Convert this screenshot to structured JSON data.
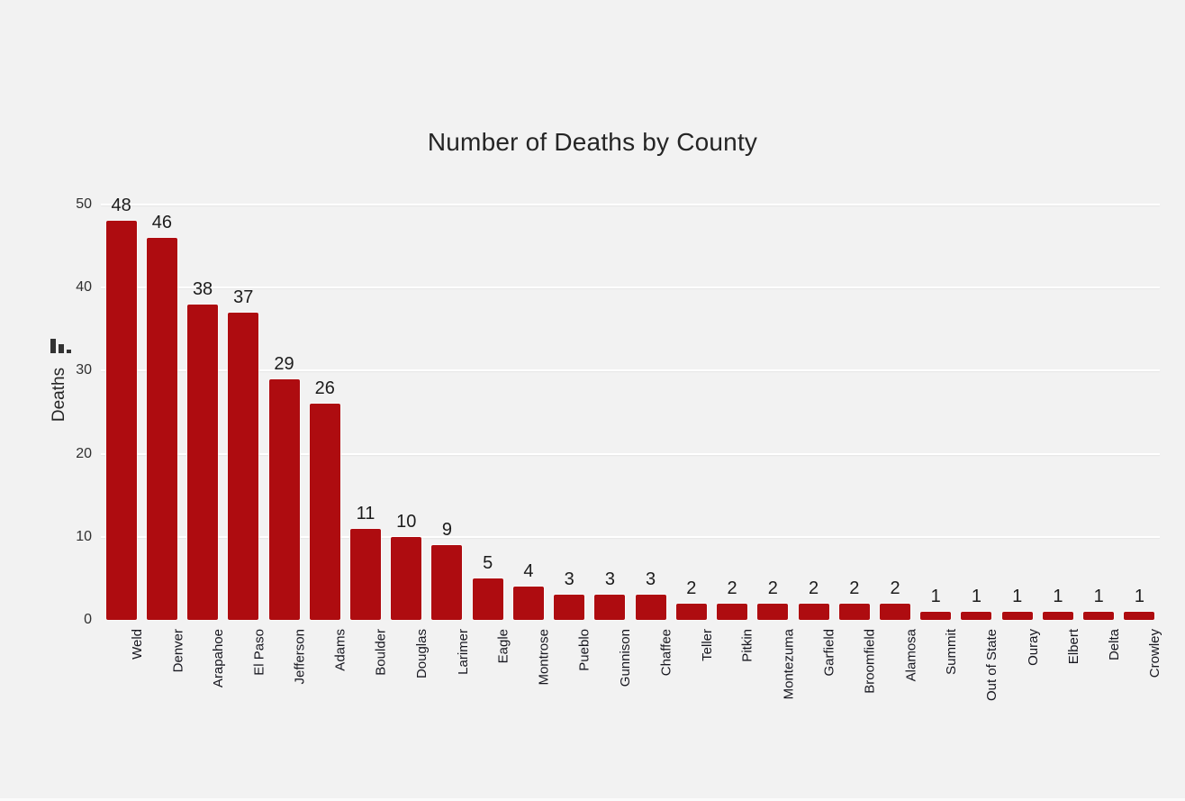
{
  "chart": {
    "title": "Number of Deaths by County",
    "y_axis": {
      "label": "Deaths",
      "ticks": [
        0,
        10,
        20,
        30,
        40,
        50
      ]
    },
    "colors": {
      "bar": "#AE0C10",
      "background": "#F2F2F2",
      "gridline": "#FFFFFF",
      "text": "#252525"
    }
  },
  "chart_data": {
    "type": "bar",
    "title": "Number of Deaths by County",
    "xlabel": "",
    "ylabel": "Deaths",
    "ylim": [
      0,
      50
    ],
    "yticks": [
      0,
      10,
      20,
      30,
      40,
      50
    ],
    "grid": true,
    "legend": false,
    "data_labels": true,
    "bar_color": "#AE0C10",
    "categories": [
      "Weld",
      "Denver",
      "Arapahoe",
      "El Paso",
      "Jefferson",
      "Adams",
      "Boulder",
      "Douglas",
      "Larimer",
      "Eagle",
      "Montrose",
      "Pueblo",
      "Gunnison",
      "Chaffee",
      "Teller",
      "Pitkin",
      "Montezuma",
      "Garfield",
      "Broomfield",
      "Alamosa",
      "Summit",
      "Out of State",
      "Ouray",
      "Elbert",
      "Delta",
      "Crowley"
    ],
    "values": [
      48,
      46,
      38,
      37,
      29,
      26,
      11,
      10,
      9,
      5,
      4,
      3,
      3,
      3,
      2,
      2,
      2,
      2,
      2,
      2,
      1,
      1,
      1,
      1,
      1,
      1
    ]
  }
}
